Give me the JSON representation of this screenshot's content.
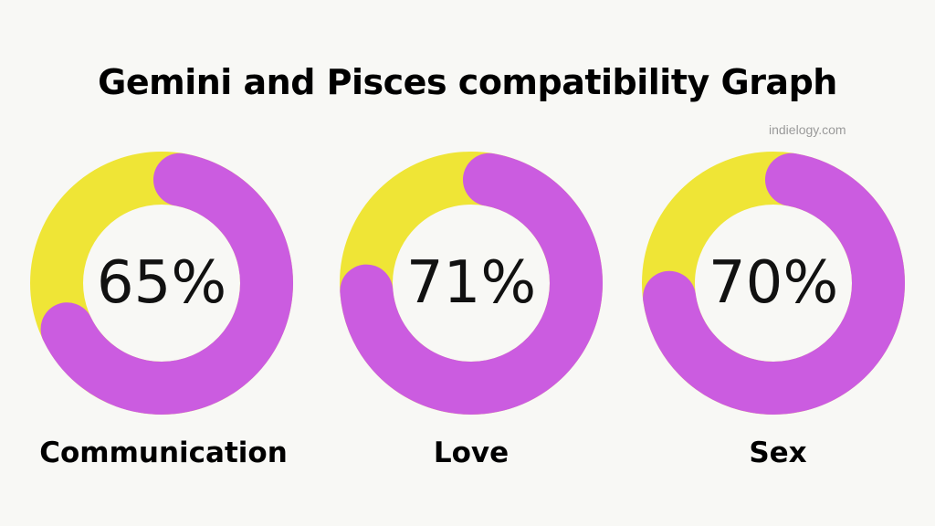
{
  "title": "Gemini and Pisces compatibility Graph",
  "watermark": "indielogy.com",
  "colors": {
    "background": "#f8f8f5",
    "track": "#efe536",
    "fill": "#cb5ce0",
    "text": "#111111"
  },
  "chart_data": [
    {
      "type": "pie",
      "title": "",
      "label": "Communication",
      "value": 65,
      "display": "65%"
    },
    {
      "type": "pie",
      "title": "",
      "label": "Love",
      "value": 71,
      "display": "71%"
    },
    {
      "type": "pie",
      "title": "",
      "label": "Sex",
      "value": 70,
      "display": "70%"
    }
  ]
}
